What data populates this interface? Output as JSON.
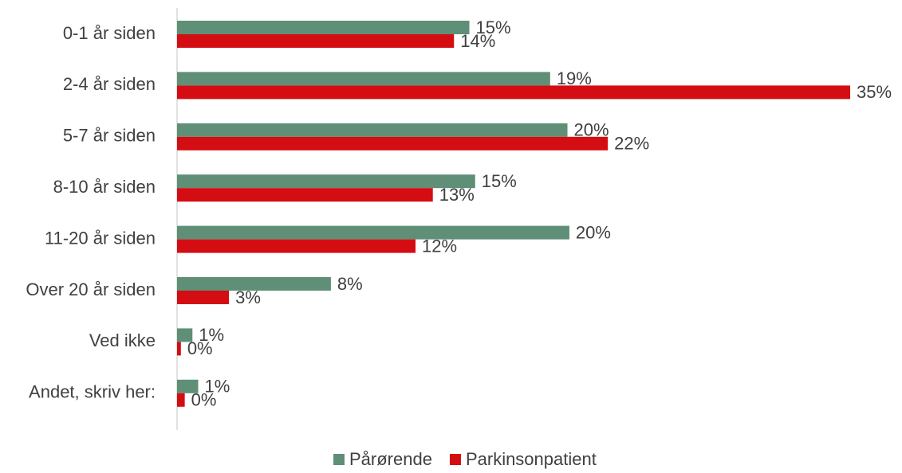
{
  "chart_data": {
    "type": "hbar",
    "categories": [
      "0-1 år siden",
      "2-4 år siden",
      "5-7 år siden",
      "8-10 år siden",
      "11-20 år siden",
      "Over 20 år siden",
      "Ved ikke",
      "Andet, skriv her:"
    ],
    "xlim": [
      0,
      35
    ],
    "legend": "bottom",
    "series": [
      {
        "name": "Pårørende",
        "color": "#5f8f76",
        "values": [
          15.2,
          19.4,
          20.3,
          15.5,
          20.4,
          8.0,
          0.8,
          1.1
        ],
        "value_labels": [
          "15%",
          "19%",
          "20%",
          "15%",
          "20%",
          "8%",
          "1%",
          "1%"
        ]
      },
      {
        "name": "Parkinsonpatient",
        "color": "#d40d12",
        "values": [
          14.4,
          35.0,
          22.4,
          13.3,
          12.4,
          2.7,
          0.2,
          0.4
        ],
        "value_labels": [
          "14%",
          "35%",
          "22%",
          "13%",
          "12%",
          "3%",
          "0%",
          "0%"
        ]
      }
    ]
  }
}
